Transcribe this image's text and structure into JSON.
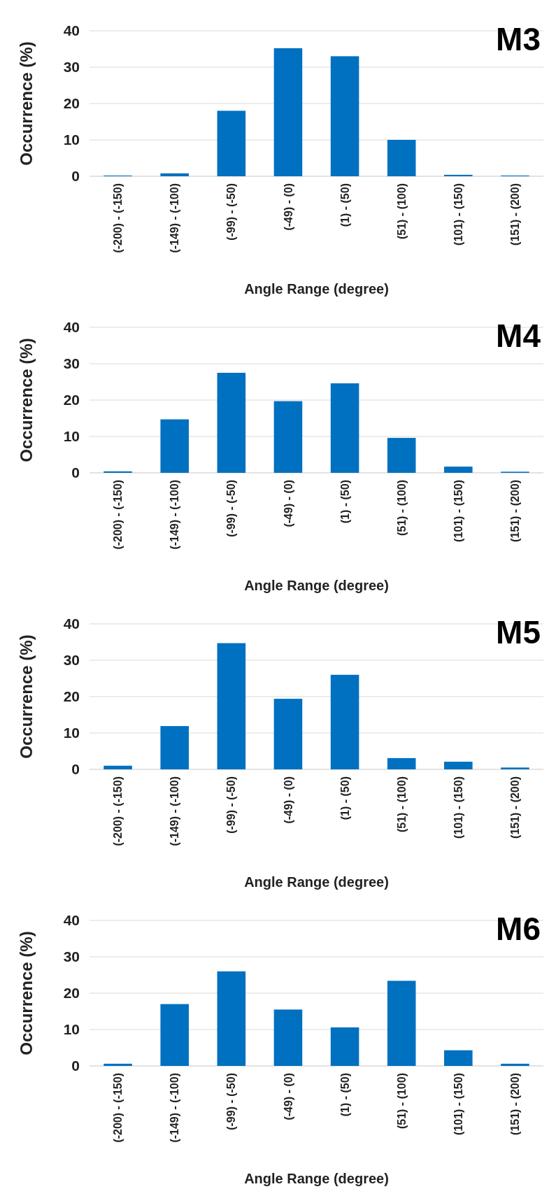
{
  "chart_data": [
    {
      "type": "bar",
      "title": "M3",
      "xlabel": "Angle Range (degree)",
      "ylabel": "Occurrence (%)",
      "categories": [
        "(-200) - (-150)",
        "(-149) - (-100)",
        "(-99) - (-50)",
        "(-49) - (0)",
        "(1) - (50)",
        "(51) - (100)",
        "(101) - (150)",
        "(151) - (200)"
      ],
      "values": [
        0.2,
        0.8,
        18,
        35.2,
        33,
        10,
        0.4,
        0.2
      ],
      "color": "#0070c0",
      "ylim": [
        0,
        40
      ],
      "yticks": [
        0,
        10,
        20,
        30,
        40
      ],
      "grid": "y"
    },
    {
      "type": "bar",
      "title": "M4",
      "xlabel": "Angle Range (degree)",
      "ylabel": "Occurrence (%)",
      "categories": [
        "(-200) - (-150)",
        "(-149) - (-100)",
        "(-99) - (-50)",
        "(-49) - (0)",
        "(1) - (50)",
        "(51) - (100)",
        "(101) - (150)",
        "(151) - (200)"
      ],
      "values": [
        0.4,
        14.7,
        27.5,
        19.7,
        24.6,
        9.6,
        1.7,
        0.3
      ],
      "color": "#0070c0",
      "ylim": [
        0,
        40
      ],
      "yticks": [
        0,
        10,
        20,
        30,
        40
      ],
      "grid": "y"
    },
    {
      "type": "bar",
      "title": "M5",
      "xlabel": "Angle Range (degree)",
      "ylabel": "Occurrence (%)",
      "categories": [
        "(-200) - (-150)",
        "(-149) - (-100)",
        "(-99) - (-50)",
        "(-49) - (0)",
        "(1) - (50)",
        "(51) - (100)",
        "(101) - (150)",
        "(151) - (200)"
      ],
      "values": [
        1,
        11.9,
        34.7,
        19.4,
        26,
        3.1,
        2.1,
        0.5
      ],
      "color": "#0070c0",
      "ylim": [
        0,
        40
      ],
      "yticks": [
        0,
        10,
        20,
        30,
        40
      ],
      "grid": "y"
    },
    {
      "type": "bar",
      "title": "M6",
      "xlabel": "Angle Range (degree)",
      "ylabel": "Occurrence (%)",
      "categories": [
        "(-200) - (-150)",
        "(-149) - (-100)",
        "(-99) - (-50)",
        "(-49) - (0)",
        "(1) - (50)",
        "(51) - (100)",
        "(101) - (150)",
        "(151) - (200)"
      ],
      "values": [
        0.6,
        17,
        26,
        15.5,
        10.6,
        23.4,
        4.3,
        0.6
      ],
      "color": "#0070c0",
      "ylim": [
        0,
        40
      ],
      "yticks": [
        0,
        10,
        20,
        30,
        40
      ],
      "grid": "y"
    }
  ]
}
